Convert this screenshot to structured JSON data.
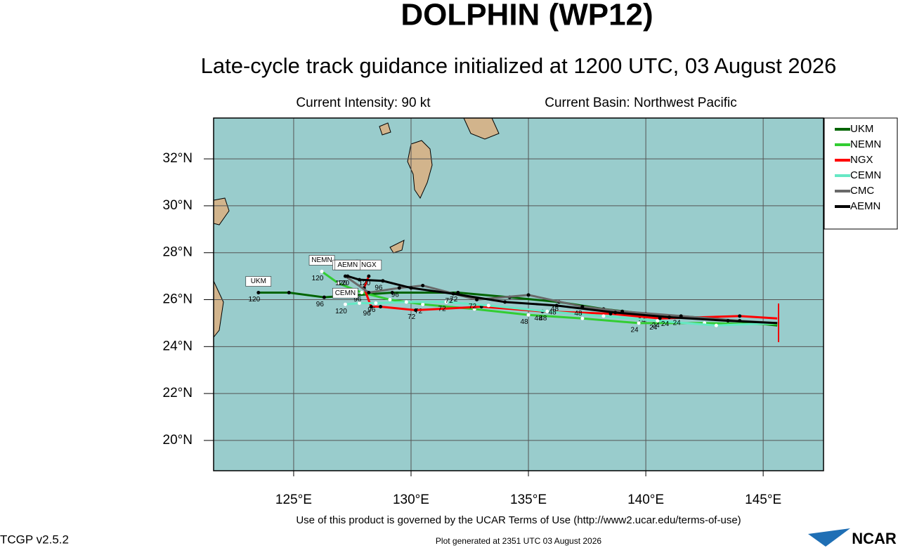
{
  "header": {
    "title": "DOLPHIN (WP12)",
    "subtitle": "Late-cycle track guidance initialized at 1200 UTC, 03 August 2026",
    "intensity": "Current Intensity: 90 kt",
    "basin": "Current Basin: Northwest Pacific"
  },
  "map": {
    "xlim": [
      121.59,
      147.57
    ],
    "ylim": [
      18.71,
      33.74
    ],
    "xticks": [
      {
        "value": 125,
        "label": "125°E"
      },
      {
        "value": 130,
        "label": "130°E"
      },
      {
        "value": 135,
        "label": "135°E"
      },
      {
        "value": 140,
        "label": "140°E"
      },
      {
        "value": 145,
        "label": "145°E"
      }
    ],
    "yticks": [
      {
        "value": 20,
        "label": "20°N"
      },
      {
        "value": 22,
        "label": "22°N"
      },
      {
        "value": 24,
        "label": "24°N"
      },
      {
        "value": 26,
        "label": "26°N"
      },
      {
        "value": 28,
        "label": "28°N"
      },
      {
        "value": 30,
        "label": "30°N"
      },
      {
        "value": 32,
        "label": "32°N"
      }
    ],
    "grid": true,
    "hours": [
      null,
      null,
      24,
      null,
      48,
      null,
      72,
      null,
      96,
      null,
      120
    ],
    "tracks": [
      {
        "name": "UKM",
        "color": "#006400",
        "lon": [
          145.6,
          142.8,
          140.0,
          138.2,
          136.3,
          134.2,
          132.0,
          129.2,
          126.3,
          124.8,
          123.5
        ],
        "lat": [
          24.9,
          25.2,
          25.4,
          25.6,
          25.9,
          26.1,
          26.3,
          26.3,
          26.1,
          26.3,
          26.3
        ]
      },
      {
        "name": "NEMN",
        "color": "#32cd32",
        "lon": [
          145.6,
          142.5,
          139.7,
          137.3,
          135.0,
          132.7,
          130.5,
          129.1,
          127.9,
          126.9,
          126.2
        ],
        "lat": [
          24.95,
          25.0,
          25.0,
          25.2,
          25.35,
          25.6,
          25.8,
          26.0,
          26.3,
          26.7,
          27.2
        ]
      },
      {
        "name": "NGX",
        "color": "#ff0000",
        "lon": [
          145.6,
          144.0,
          140.6,
          138.5,
          135.6,
          133.0,
          130.2,
          128.7,
          128.3,
          128.0,
          128.2
        ],
        "lat": [
          25.2,
          25.3,
          25.2,
          25.4,
          25.5,
          25.7,
          25.55,
          25.7,
          25.7,
          26.5,
          27.0
        ]
      },
      {
        "name": "CEMN",
        "color": "#66e8c4",
        "lon": [
          145.6,
          143.0,
          140.5,
          138.2,
          135.8,
          133.3,
          131.5,
          129.8,
          128.5,
          127.8,
          127.2
        ],
        "lat": [
          25.0,
          24.9,
          25.1,
          25.3,
          25.5,
          25.75,
          25.9,
          25.9,
          25.85,
          25.85,
          25.8
        ]
      },
      {
        "name": "CMC",
        "color": "#696969",
        "lon": [
          145.6,
          144.0,
          141.5,
          139.0,
          137.3,
          135.0,
          132.8,
          130.5,
          129.5,
          128.2,
          127.2
        ],
        "lat": [
          25.0,
          25.1,
          25.3,
          25.5,
          25.7,
          26.2,
          26.0,
          26.6,
          26.5,
          26.3,
          27.0
        ]
      },
      {
        "name": "AEMN",
        "color": "#000000",
        "lon": [
          145.6,
          143.5,
          141.0,
          138.7,
          136.2,
          134.0,
          131.8,
          130.0,
          128.8,
          127.8,
          127.3
        ],
        "lat": [
          25.0,
          25.1,
          25.25,
          25.45,
          25.75,
          25.9,
          26.25,
          26.5,
          26.8,
          26.85,
          27.0
        ]
      }
    ]
  },
  "footer": {
    "terms": "Use of this product is governed by the UCAR Terms of Use (http://www2.ucar.edu/terms-of-use)",
    "version": "TCGP v2.5.2",
    "generated": "Plot generated at 2351 UTC   03 August 2026",
    "logo": "NCAR"
  }
}
